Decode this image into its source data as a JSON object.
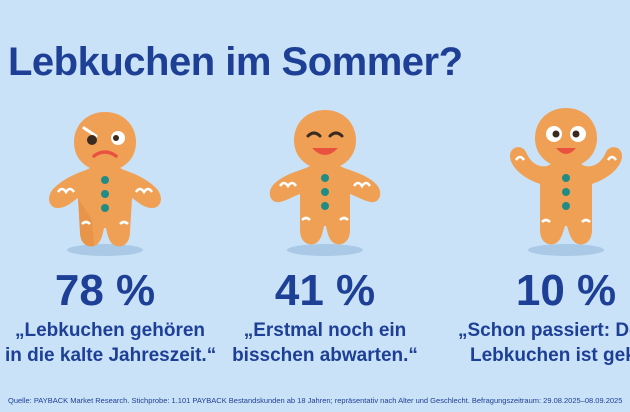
{
  "title": "Lebkuchen im Sommer?",
  "colors": {
    "background": "#c9e2f7",
    "text": "#1e3f96",
    "cookie": "#f0a054",
    "cookie_shadow": "#e0893e",
    "icing": "#ffffff",
    "buttons": "#1f8c86",
    "mouth": "#e8523f"
  },
  "chart_data": {
    "type": "bar",
    "categories": [
      "„Lebkuchen gehören in die kalte Jahreszeit.“",
      "„Erstmal noch ein bisschen abwarten.“",
      "„Schon passiert: Der Lebkuchen ist gekauft.“"
    ],
    "values": [
      78,
      41,
      10
    ],
    "unit": "%"
  },
  "items": [
    {
      "value": 78,
      "label": "78 %",
      "quote_line1": "„Lebkuchen gehören",
      "quote_line2": "in die kalte Jahreszeit.“",
      "mood": "sad"
    },
    {
      "value": 41,
      "label": "41 %",
      "quote_line1": "„Erstmal noch ein",
      "quote_line2": "bisschen abwarten.“",
      "mood": "calm"
    },
    {
      "value": 10,
      "label": "10 %",
      "quote_line1": "„Schon passiert: Der",
      "quote_line2": "Lebkuchen ist gekau",
      "mood": "happy"
    }
  ],
  "source": "Quelle: PAYBACK Market Research. Stichprobe: 1.101 PAYBACK Bestandskunden ab 18 Jahren; repräsentativ nach Alter und Geschlecht. Befragungszeitraum: 29.08.2025–08.09.2025"
}
